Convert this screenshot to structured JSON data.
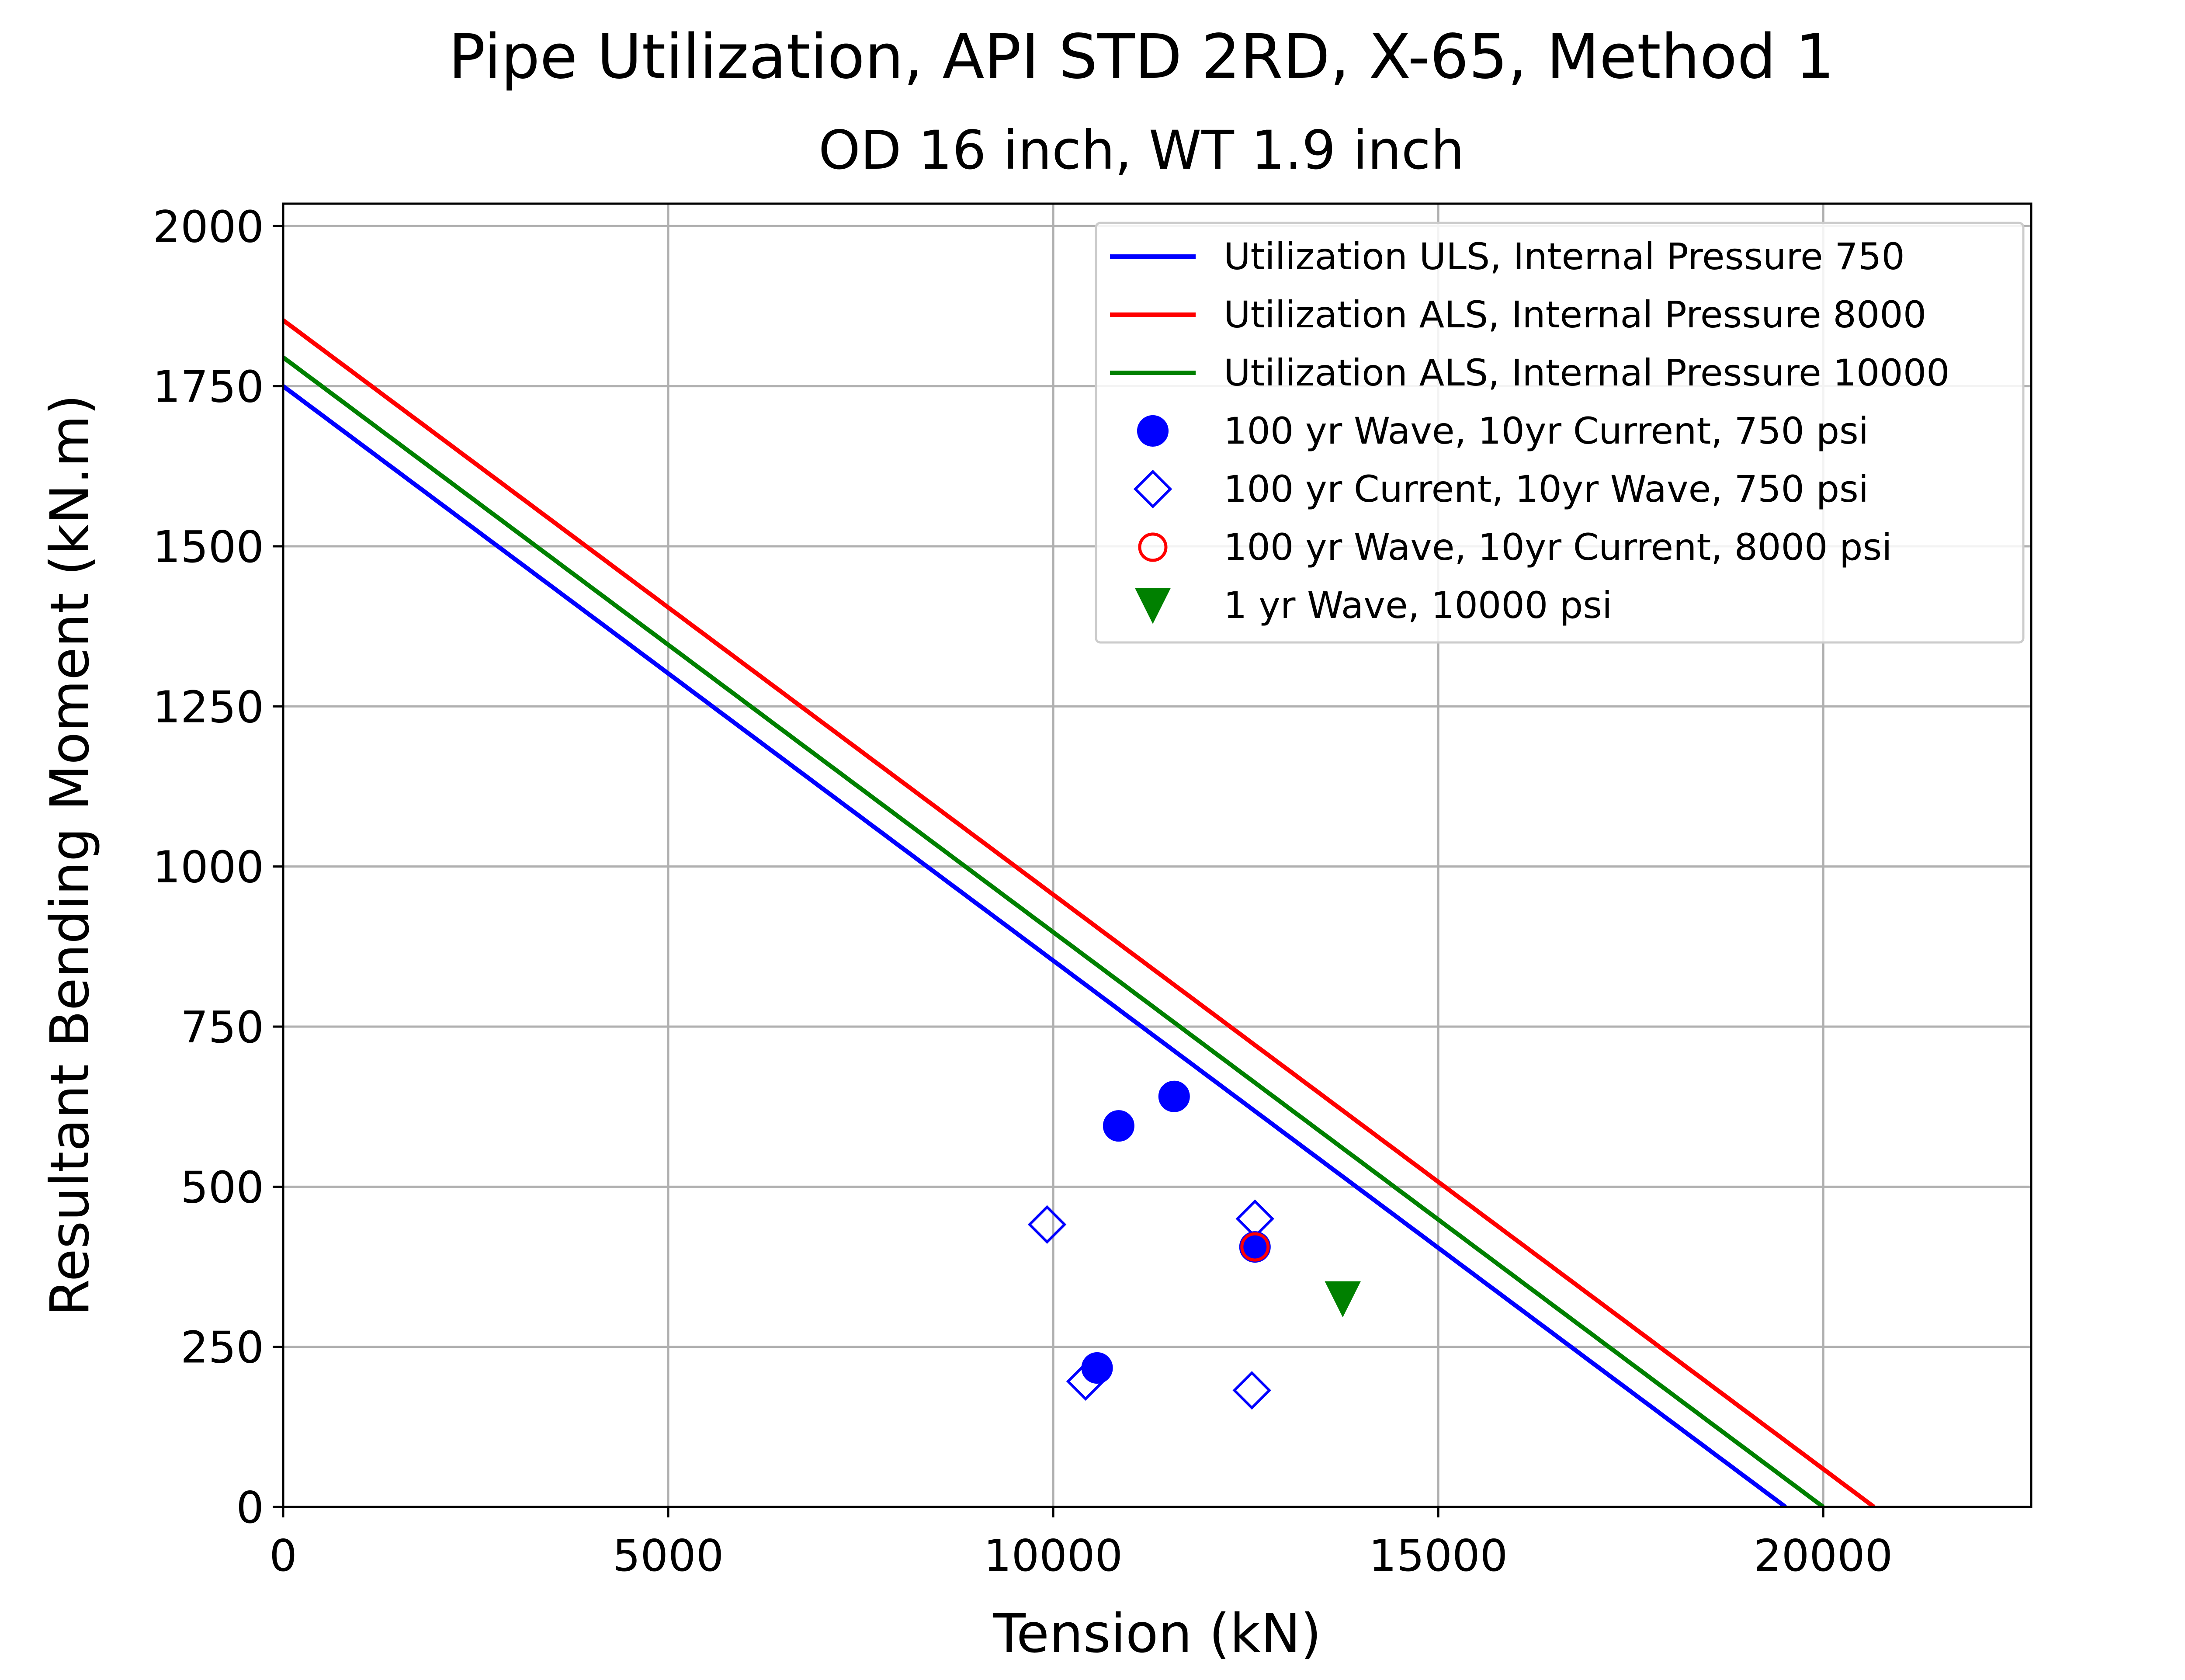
{
  "chart_data": {
    "type": "line",
    "title": "Pipe Utilization, API STD 2RD, X-65, Method 1",
    "subtitle": "OD 16 inch, WT 1.9 inch",
    "xlabel": "Tension (kN)",
    "ylabel": "Resultant Bending Moment (kN.m)",
    "xlim": [
      0,
      22700
    ],
    "ylim": [
      0,
      2035
    ],
    "xticks": [
      0,
      5000,
      10000,
      15000,
      20000
    ],
    "yticks": [
      0,
      250,
      500,
      750,
      1000,
      1250,
      1500,
      1750,
      2000
    ],
    "grid": true,
    "legend_position": "top-right",
    "series": [
      {
        "name": "Utilization ULS, Internal Pressure 750",
        "kind": "line",
        "color": "#0000ff",
        "points": [
          [
            0,
            1750
          ],
          [
            19510,
            0
          ]
        ]
      },
      {
        "name": "Utilization ALS, Internal Pressure 8000",
        "kind": "line",
        "color": "#ff0000",
        "points": [
          [
            0,
            1853
          ],
          [
            20660,
            0
          ]
        ]
      },
      {
        "name": "Utilization ALS, Internal Pressure 10000",
        "kind": "line",
        "color": "#008000",
        "points": [
          [
            0,
            1795
          ],
          [
            20000,
            0
          ]
        ]
      },
      {
        "name": "100 yr Wave, 10yr Current, 750 psi",
        "kind": "scatter",
        "marker": "circle-filled",
        "color": "#0000ff",
        "points": [
          [
            10850,
            595
          ],
          [
            11570,
            641
          ],
          [
            10570,
            217
          ],
          [
            12620,
            406
          ]
        ]
      },
      {
        "name": "100 yr Current, 10yr Wave, 750 psi",
        "kind": "scatter",
        "marker": "diamond-open",
        "color": "#0000ff",
        "points": [
          [
            9920,
            441
          ],
          [
            12620,
            450
          ],
          [
            10420,
            196
          ],
          [
            12580,
            182
          ]
        ]
      },
      {
        "name": "100 yr Wave, 10yr Current, 8000 psi",
        "kind": "scatter",
        "marker": "circle-open",
        "color": "#ff0000",
        "points": [
          [
            12620,
            406
          ]
        ]
      },
      {
        "name": "1 yr Wave, 10000 psi",
        "kind": "scatter",
        "marker": "triangle-down-filled",
        "color": "#008000",
        "points": [
          [
            13760,
            325
          ]
        ]
      }
    ]
  }
}
